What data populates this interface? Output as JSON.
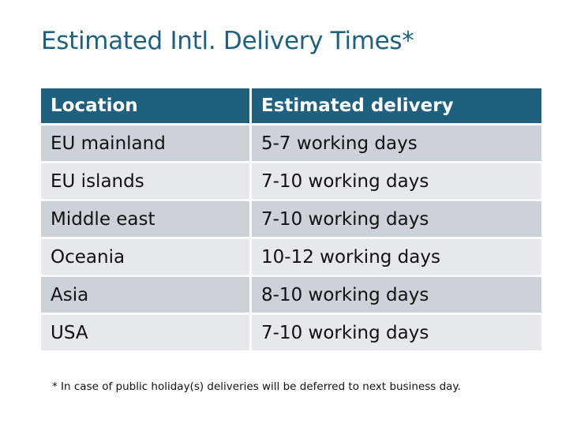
{
  "title": "Estimated Intl. Delivery Times*",
  "table": {
    "headers": [
      "Location",
      "Estimated delivery"
    ],
    "rows": [
      [
        "EU mainland",
        "5-7 working days"
      ],
      [
        "EU islands",
        "7-10 working days"
      ],
      [
        "Middle east",
        "7-10 working days"
      ],
      [
        "Oceania",
        "10-12 working days"
      ],
      [
        "Asia",
        "8-10 working days"
      ],
      [
        "USA",
        "7-10 working days"
      ]
    ]
  },
  "footnote": "* In case of public holiday(s) deliveries will be deferred to next business day.",
  "colors": {
    "header": "#20607f",
    "row_dark": "#cdd1d8",
    "row_light": "#e6e8eb"
  }
}
